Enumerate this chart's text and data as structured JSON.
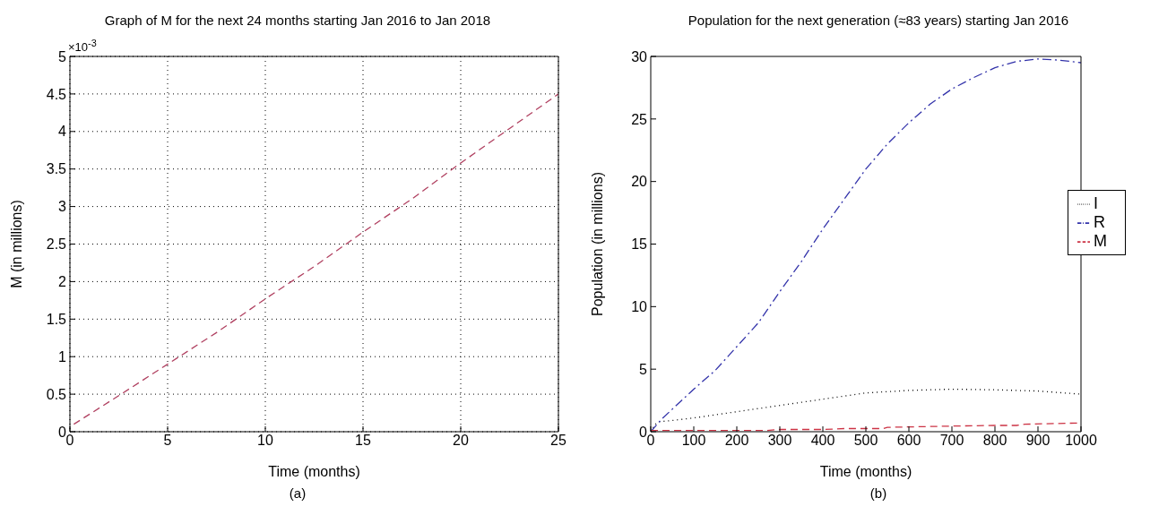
{
  "chart_data": [
    {
      "type": "line",
      "title": "Graph of M for the next 24 months starting Jan 2016 to Jan 2018",
      "xlabel": "Time (months)",
      "ylabel": "M (in millions)",
      "annotations": [
        "×10$^{-3}$",
        "(a)"
      ],
      "x": [
        0.2,
        2.5,
        5,
        7.5,
        10,
        12.5,
        15,
        17.5,
        20,
        22.5,
        25
      ],
      "series": [
        {
          "color": "#b04060",
          "line_style": "dashed",
          "values": [
            0.1,
            0.48,
            0.9,
            1.32,
            1.77,
            2.2,
            2.66,
            3.1,
            3.58,
            4.04,
            4.5
          ]
        }
      ],
      "xlim": [
        0,
        25
      ],
      "xticks": [
        0,
        5,
        10,
        15,
        20,
        25
      ],
      "ylim": [
        0,
        5
      ],
      "yticks": [
        0,
        0.5,
        1,
        1.5,
        2,
        2.5,
        3,
        3.5,
        4,
        4.5,
        5
      ],
      "grid": true,
      "marker": "none"
    },
    {
      "type": "line",
      "title": "Population for the next generation (≈83 years) starting Jan 2016",
      "xlabel": "Time (months)",
      "ylabel": "Population (in millions)",
      "annotations": [
        "(b)"
      ],
      "series": [
        {
          "name": "I",
          "color": "#000000",
          "line_style": "dotted",
          "x": [
            0,
            10,
            20,
            50,
            100,
            200,
            300,
            400,
            500,
            600,
            700,
            800,
            900,
            1000
          ],
          "values": [
            0,
            0.6,
            0.8,
            0.9,
            1.1,
            1.6,
            2.1,
            2.6,
            3.1,
            3.3,
            3.4,
            3.35,
            3.25,
            3.0
          ]
        },
        {
          "name": "R",
          "color": "#3333aa",
          "line_style": "dashdot",
          "x": [
            0,
            25,
            50,
            100,
            150,
            200,
            250,
            300,
            350,
            400,
            450,
            500,
            550,
            600,
            650,
            700,
            750,
            800,
            850,
            900,
            950,
            1000
          ],
          "values": [
            0,
            1,
            1.8,
            3.4,
            4.9,
            6.8,
            8.7,
            11.2,
            13.6,
            16.2,
            18.6,
            21,
            23,
            24.7,
            26.2,
            27.4,
            28.3,
            29.1,
            29.6,
            29.8,
            29.7,
            29.5
          ]
        },
        {
          "name": "M",
          "color": "#cc3344",
          "line_style": "dashed",
          "x": [
            0,
            100,
            200,
            270,
            300,
            400,
            450,
            540,
            550,
            700,
            800,
            850,
            870,
            1000
          ],
          "values": [
            0.1,
            0.1,
            0.1,
            0.1,
            0.18,
            0.18,
            0.25,
            0.25,
            0.35,
            0.45,
            0.5,
            0.5,
            0.6,
            0.7
          ]
        }
      ],
      "xlim": [
        0,
        1000
      ],
      "xticks": [
        0,
        100,
        200,
        300,
        400,
        500,
        600,
        700,
        800,
        900,
        1000
      ],
      "ylim": [
        0,
        30
      ],
      "yticks": [
        0,
        5,
        10,
        15,
        20,
        25,
        30
      ],
      "legend": "right",
      "marker": "none"
    }
  ]
}
